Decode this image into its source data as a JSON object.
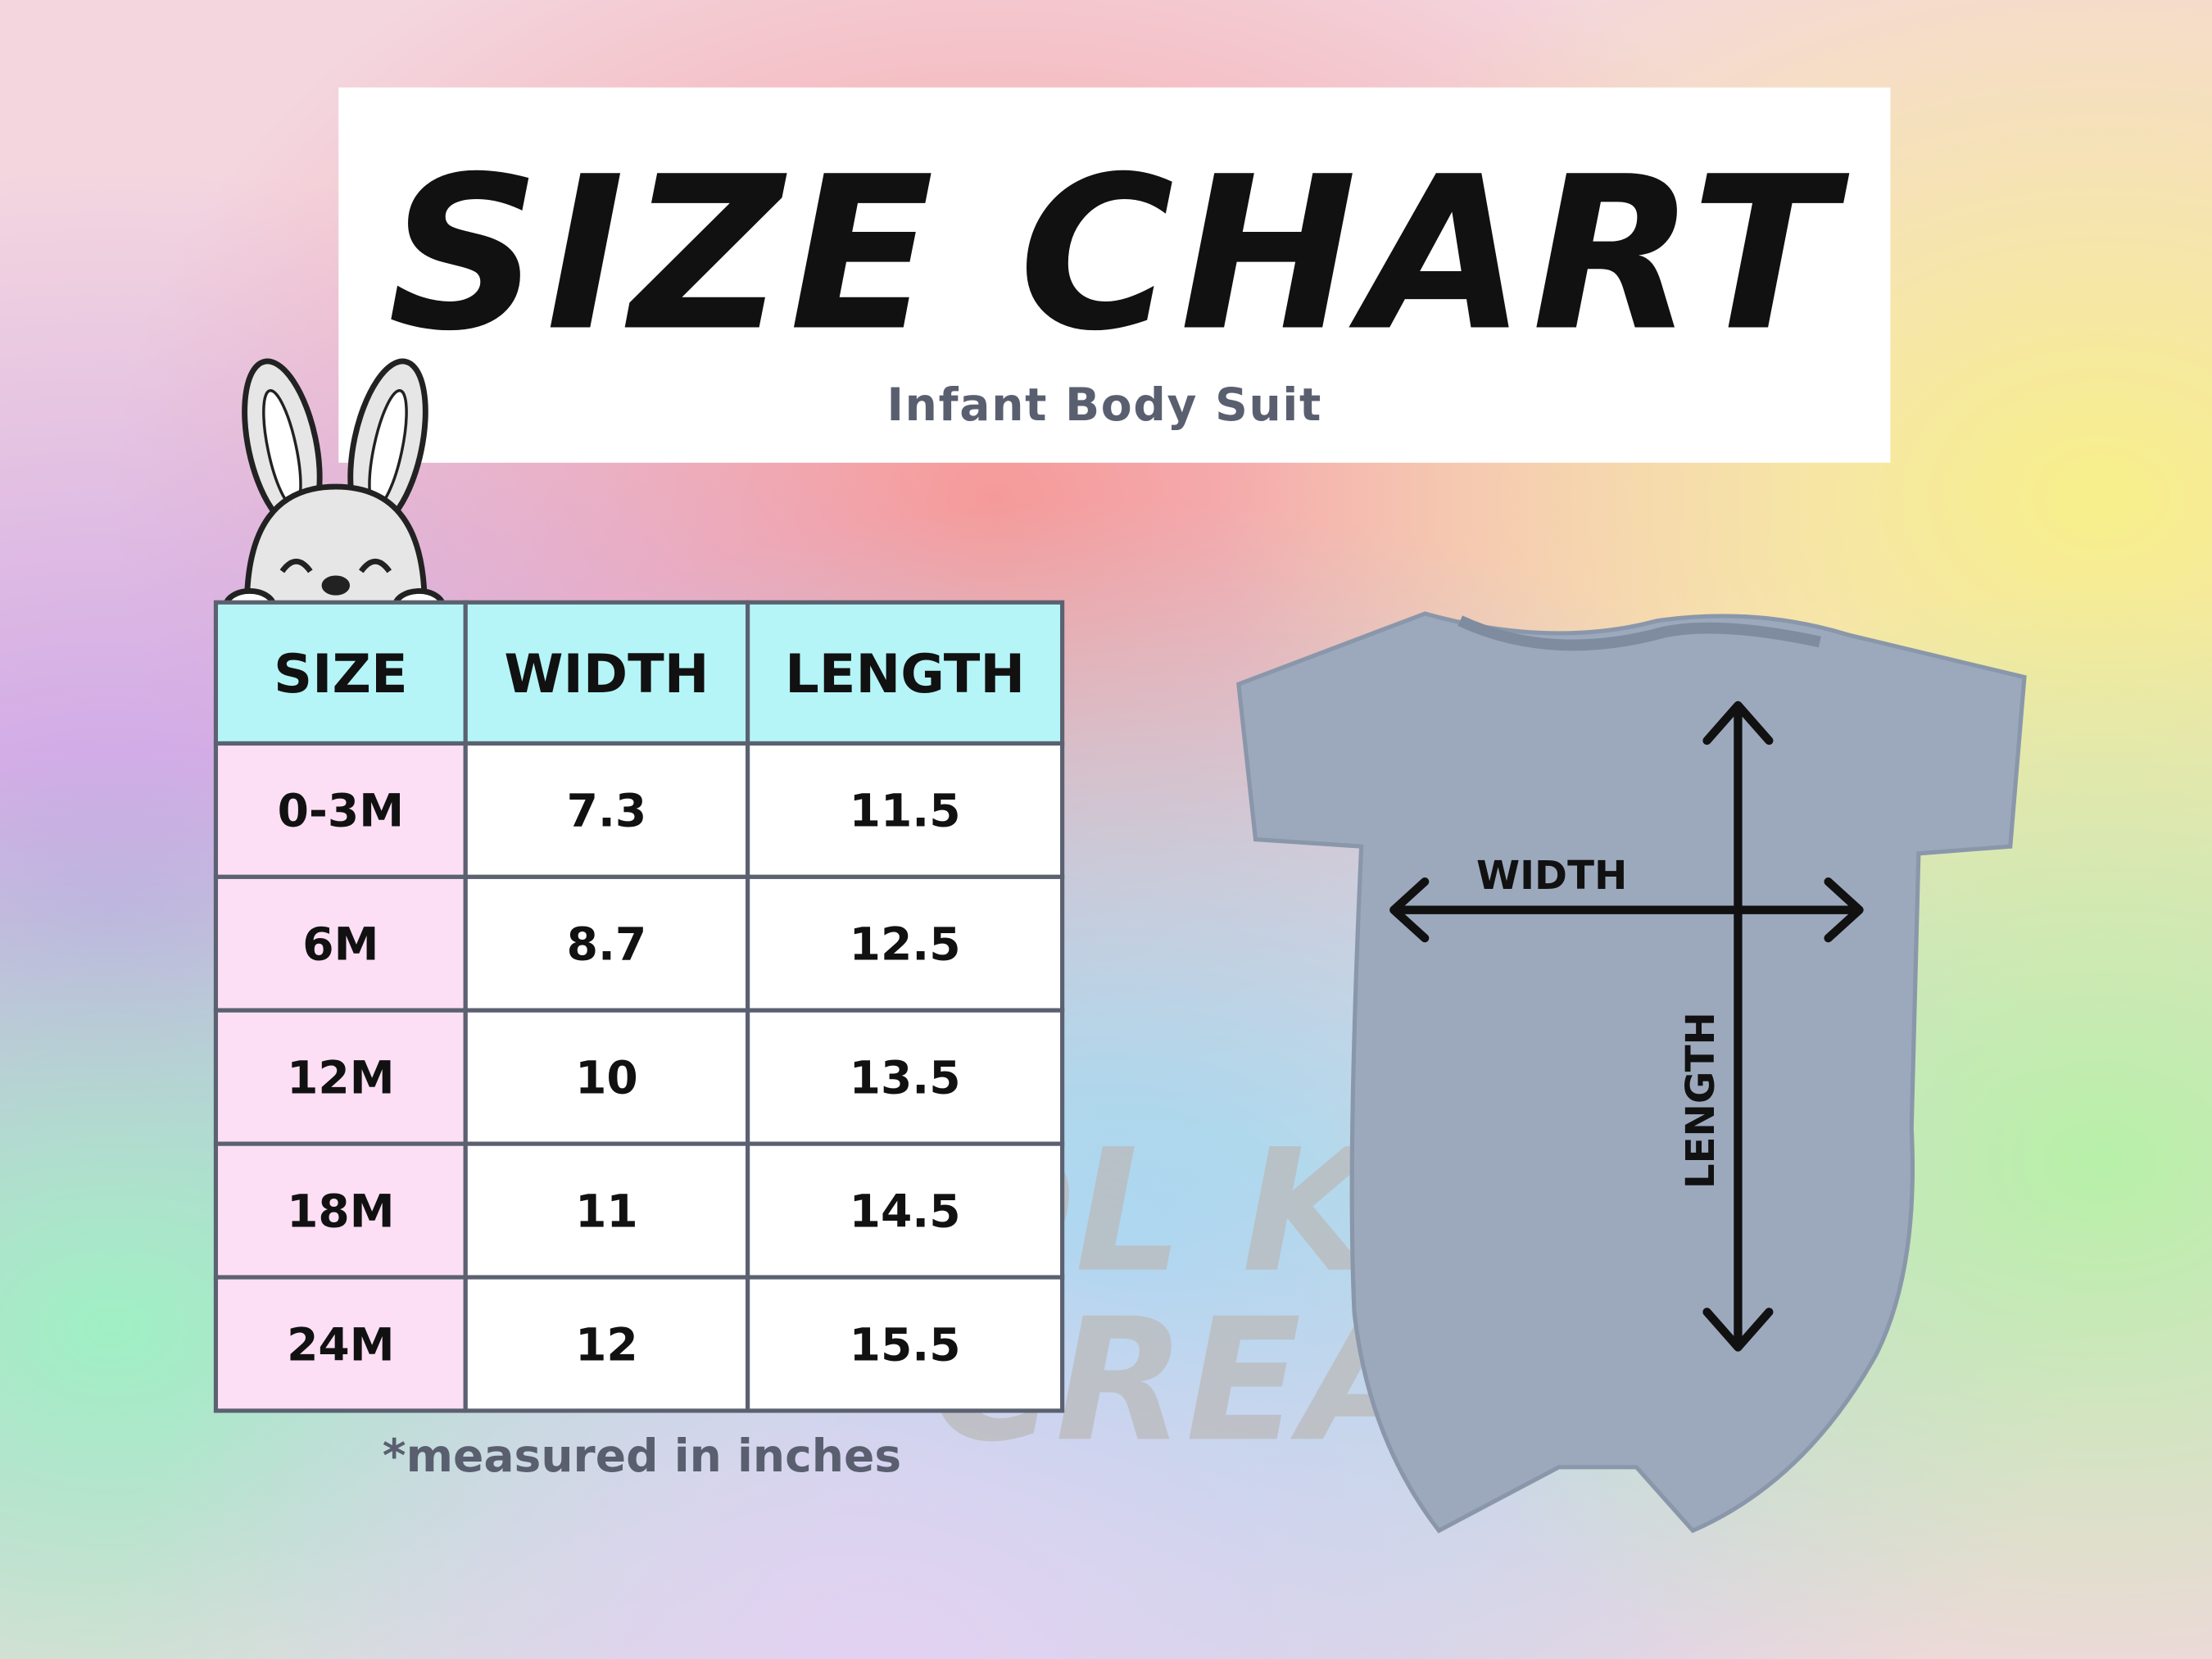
{
  "header": {
    "title": "SIZE CHART",
    "subtitle": "Infant Body Suit"
  },
  "table": {
    "columns": [
      "SIZE",
      "WIDTH",
      "LENGTH"
    ],
    "rows": [
      [
        "0-3M",
        "7.3",
        "11.5"
      ],
      [
        "6M",
        "8.7",
        "12.5"
      ],
      [
        "12M",
        "10",
        "13.5"
      ],
      [
        "18M",
        "11",
        "14.5"
      ],
      [
        "24M",
        "12",
        "15.5"
      ]
    ]
  },
  "footnote": "*measured in inches",
  "diagram": {
    "width_label": "WIDTH",
    "length_label": "LENGTH"
  },
  "watermark": [
    "COOL KIND",
    "CREATIVE"
  ]
}
